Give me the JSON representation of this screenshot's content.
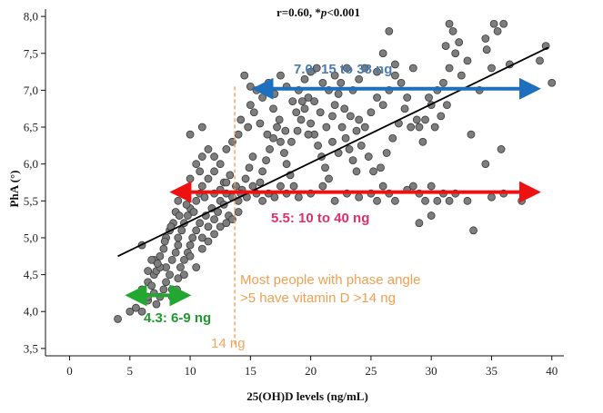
{
  "chart_data": {
    "type": "scatter",
    "title": "r=0.60, *p<0.001",
    "title_plain": "r=0.60, *",
    "title_italic": "p",
    "title_tail": "<0.001",
    "xlabel": "25(OH)D levels (ng/mL)",
    "ylabel": "PhA (°)",
    "xlim": [
      -2,
      41
    ],
    "ylim": [
      3.4,
      8.1
    ],
    "x_ticks": [
      0,
      5,
      10,
      15,
      20,
      25,
      30,
      35,
      40
    ],
    "x_tick_labels": [
      "0",
      "5",
      "10",
      "15",
      "20",
      "25",
      "30",
      "35",
      "40"
    ],
    "y_ticks": [
      3.5,
      4.0,
      4.5,
      5.0,
      5.5,
      6.0,
      6.5,
      7.0,
      7.5,
      8.0
    ],
    "y_tick_labels": [
      "3,5",
      "4,0",
      "4,5",
      "5,0",
      "5,5",
      "6,0",
      "6,5",
      "7,0",
      "7,5",
      "8,0"
    ],
    "regression_line": {
      "x": [
        4.0,
        39.7
      ],
      "y": [
        4.75,
        7.58
      ]
    },
    "threshold": {
      "x": 13.7,
      "label": "14 ng",
      "color": "#f4a460"
    },
    "arrows": [
      {
        "y": 7.02,
        "x_from": 16.0,
        "x_to": 38.2,
        "label": "7.0: 15 to 38 ng",
        "color": "#1f6fbf",
        "label_color": "#4a7ab0"
      },
      {
        "y": 5.62,
        "x_from": 9.2,
        "x_to": 38.2,
        "label": "5.5: 10 to 40 ng",
        "color": "#ee1111",
        "label_color": "#e0306a"
      },
      {
        "y": 4.22,
        "x_from": 5.5,
        "x_to": 9.2,
        "label": "4.3: 6-9 ng",
        "color": "#22a830",
        "label_color": "#1f9a2e"
      }
    ],
    "annotation": {
      "lines": [
        "Most people with phase angle",
        ">5  have vitamin D >14 ng"
      ],
      "color": "#f0a050"
    },
    "points_seed": 7,
    "points": [
      [
        4,
        3.9
      ],
      [
        5,
        4.0
      ],
      [
        5.5,
        4.05
      ],
      [
        6,
        4.0
      ],
      [
        6.5,
        4.15
      ],
      [
        6,
        4.3
      ],
      [
        6.5,
        4.4
      ],
      [
        6.8,
        4.35
      ],
      [
        7,
        4.5
      ],
      [
        7.2,
        4.55
      ],
      [
        7,
        4.7
      ],
      [
        7.5,
        4.75
      ],
      [
        7.8,
        4.85
      ],
      [
        8,
        4.6
      ],
      [
        8.3,
        4.5
      ],
      [
        8.5,
        4.7
      ],
      [
        8.8,
        4.8
      ],
      [
        9,
        4.9
      ],
      [
        7.5,
        4.6
      ],
      [
        6.8,
        4.7
      ],
      [
        6,
        4.9
      ],
      [
        6.5,
        4.2
      ],
      [
        7,
        4.25
      ],
      [
        7.5,
        4.2
      ],
      [
        8,
        4.4
      ],
      [
        8.5,
        4.3
      ],
      [
        9,
        4.45
      ],
      [
        9.2,
        4.6
      ],
      [
        9.5,
        4.7
      ],
      [
        9.8,
        4.8
      ],
      [
        10,
        4.9
      ],
      [
        10.2,
        5.0
      ],
      [
        10.5,
        5.1
      ],
      [
        10.8,
        5.2
      ],
      [
        11,
        5.0
      ],
      [
        11.3,
        5.3
      ],
      [
        11.5,
        5.15
      ],
      [
        11.8,
        5.4
      ],
      [
        12,
        5.25
      ],
      [
        12.3,
        5.35
      ],
      [
        12.5,
        5.5
      ],
      [
        12.8,
        5.45
      ],
      [
        13,
        5.6
      ],
      [
        13.2,
        5.3
      ],
      [
        13.5,
        5.55
      ],
      [
        9,
        5.0
      ],
      [
        9.3,
        5.1
      ],
      [
        9.5,
        5.2
      ],
      [
        9.8,
        5.3
      ],
      [
        10,
        5.4
      ],
      [
        10.3,
        5.35
      ],
      [
        10.5,
        5.5
      ],
      [
        10.8,
        5.6
      ],
      [
        11,
        5.7
      ],
      [
        11.2,
        5.55
      ],
      [
        8,
        5.0
      ],
      [
        8.3,
        5.1
      ],
      [
        8.6,
        5.2
      ],
      [
        8.8,
        5.35
      ],
      [
        9,
        5.5
      ],
      [
        9.5,
        5.65
      ],
      [
        10,
        5.8
      ],
      [
        10.5,
        6.0
      ],
      [
        11,
        6.1
      ],
      [
        11.5,
        6.2
      ],
      [
        12,
        6.1
      ],
      [
        12.5,
        6.0
      ],
      [
        13,
        6.2
      ],
      [
        13.5,
        6.3
      ],
      [
        14,
        6.4
      ],
      [
        10,
        6.4
      ],
      [
        11,
        6.5
      ],
      [
        12,
        5.9
      ],
      [
        12.8,
        5.75
      ],
      [
        13.3,
        5.85
      ],
      [
        14,
        5.5
      ],
      [
        14.3,
        5.65
      ],
      [
        14.6,
        5.8
      ],
      [
        14.9,
        5.95
      ],
      [
        15.2,
        6.1
      ],
      [
        15.5,
        5.6
      ],
      [
        15.8,
        5.75
      ],
      [
        16,
        5.9
      ],
      [
        16.3,
        6.05
      ],
      [
        16.6,
        6.2
      ],
      [
        16.9,
        6.35
      ],
      [
        17.2,
        6.5
      ],
      [
        17.5,
        6.3
      ],
      [
        17.8,
        6.15
      ],
      [
        18,
        6.0
      ],
      [
        18.3,
        5.85
      ],
      [
        18.6,
        5.7
      ],
      [
        18.9,
        6.45
      ],
      [
        19.2,
        6.6
      ],
      [
        19.5,
        6.75
      ],
      [
        19.8,
        6.9
      ],
      [
        20,
        6.55
      ],
      [
        20.3,
        6.4
      ],
      [
        20.6,
        6.25
      ],
      [
        20.9,
        6.1
      ],
      [
        21.2,
        5.95
      ],
      [
        21.5,
        5.8
      ],
      [
        21.8,
        6.65
      ],
      [
        22,
        6.8
      ],
      [
        22.3,
        6.95
      ],
      [
        22.6,
        6.5
      ],
      [
        22.9,
        6.35
      ],
      [
        23.2,
        6.2
      ],
      [
        23.5,
        6.05
      ],
      [
        23.8,
        5.9
      ],
      [
        15,
        6.8
      ],
      [
        15.5,
        7.0
      ],
      [
        16,
        6.9
      ],
      [
        16.5,
        7.1
      ],
      [
        17,
        6.95
      ],
      [
        17.5,
        7.2
      ],
      [
        18,
        7.05
      ],
      [
        18.5,
        6.85
      ],
      [
        19,
        7.0
      ],
      [
        19.5,
        7.15
      ],
      [
        20,
        7.25
      ],
      [
        20.5,
        7.3
      ],
      [
        21,
        7.1
      ],
      [
        21.5,
        7.0
      ],
      [
        22,
        7.2
      ],
      [
        22.5,
        7.1
      ],
      [
        23,
        7.3
      ],
      [
        23.5,
        7.0
      ],
      [
        24,
        7.15
      ],
      [
        24.5,
        7.3
      ],
      [
        24,
        6.6
      ],
      [
        24.5,
        6.5
      ],
      [
        25,
        6.7
      ],
      [
        25.5,
        6.9
      ],
      [
        26,
        6.8
      ],
      [
        26.5,
        7.0
      ],
      [
        27,
        7.2
      ],
      [
        27.5,
        7.1
      ],
      [
        28,
        6.9
      ],
      [
        28.5,
        7.3
      ],
      [
        25,
        5.6
      ],
      [
        25.5,
        5.5
      ],
      [
        26,
        5.7
      ],
      [
        26.5,
        5.6
      ],
      [
        27,
        5.5
      ],
      [
        28,
        5.65
      ],
      [
        28.5,
        5.7
      ],
      [
        29,
        5.6
      ],
      [
        29.5,
        5.5
      ],
      [
        30,
        5.7
      ],
      [
        30.5,
        5.5
      ],
      [
        31,
        5.6
      ],
      [
        29,
        5.2
      ],
      [
        30,
        5.3
      ],
      [
        31.5,
        5.5
      ],
      [
        32,
        5.6
      ],
      [
        33,
        5.5
      ],
      [
        33.5,
        5.1
      ],
      [
        35,
        5.55
      ],
      [
        36,
        5.6
      ],
      [
        29,
        6.5
      ],
      [
        29.5,
        6.6
      ],
      [
        30,
        6.8
      ],
      [
        30.5,
        7.0
      ],
      [
        31,
        7.1
      ],
      [
        31.5,
        7.3
      ],
      [
        32,
        7.5
      ],
      [
        32.5,
        7.2
      ],
      [
        33,
        7.4
      ],
      [
        34,
        7.0
      ],
      [
        35,
        7.3
      ],
      [
        35.5,
        7.8
      ],
      [
        36,
        7.9
      ],
      [
        35.2,
        7.9
      ],
      [
        31.5,
        7.9
      ],
      [
        31.8,
        7.8
      ],
      [
        31.2,
        7.6
      ],
      [
        32.3,
        7.65
      ],
      [
        34.6,
        7.55
      ],
      [
        39.5,
        7.6
      ],
      [
        40,
        7.1
      ],
      [
        39,
        7.4
      ],
      [
        37.5,
        5.5
      ],
      [
        38,
        7.0
      ],
      [
        36.5,
        7.35
      ],
      [
        34.5,
        7.7
      ],
      [
        26.5,
        7.8
      ],
      [
        26,
        7.5
      ],
      [
        27,
        7.35
      ],
      [
        25.5,
        7.25
      ],
      [
        14.5,
        7.2
      ],
      [
        15,
        7.05
      ],
      [
        14.2,
        6.6
      ],
      [
        14.8,
        6.5
      ],
      [
        15.3,
        6.7
      ],
      [
        15.8,
        6.55
      ],
      [
        16.4,
        6.4
      ],
      [
        16.9,
        6.75
      ],
      [
        17.4,
        6.6
      ],
      [
        17.9,
        6.45
      ],
      [
        18.4,
        6.3
      ],
      [
        18.8,
        6.7
      ],
      [
        19.3,
        6.85
      ],
      [
        19.8,
        6.4
      ],
      [
        20.3,
        6.85
      ],
      [
        20.8,
        6.7
      ],
      [
        21.3,
        6.5
      ],
      [
        21.8,
        6.3
      ],
      [
        22.3,
        6.15
      ],
      [
        22.8,
        6.75
      ],
      [
        23.3,
        6.65
      ],
      [
        23.8,
        6.45
      ],
      [
        24.2,
        6.25
      ],
      [
        24.8,
        6.1
      ],
      [
        25.2,
        5.9
      ],
      [
        25.8,
        5.95
      ],
      [
        26.3,
        6.15
      ],
      [
        26.8,
        6.35
      ],
      [
        27.3,
        6.55
      ],
      [
        27.8,
        6.75
      ],
      [
        28.3,
        6.5
      ],
      [
        28.8,
        6.6
      ],
      [
        29.3,
        6.3
      ],
      [
        29.8,
        6.9
      ],
      [
        30.3,
        6.5
      ],
      [
        30.8,
        6.65
      ],
      [
        31.3,
        6.8
      ],
      [
        33.3,
        6.4
      ],
      [
        34.5,
        6.0
      ],
      [
        35.8,
        6.2
      ],
      [
        16,
        5.5
      ],
      [
        16.5,
        5.6
      ],
      [
        17,
        5.55
      ],
      [
        17.5,
        5.7
      ],
      [
        18,
        5.6
      ],
      [
        19,
        5.55
      ],
      [
        20,
        5.6
      ],
      [
        21,
        5.7
      ],
      [
        22,
        5.5
      ],
      [
        23,
        5.6
      ],
      [
        24,
        5.55
      ],
      [
        12,
        5.6
      ],
      [
        12.5,
        5.65
      ],
      [
        13,
        5.75
      ],
      [
        13.8,
        5.7
      ],
      [
        14.2,
        5.6
      ],
      [
        14.7,
        5.55
      ],
      [
        15.2,
        5.7
      ],
      [
        11.5,
        5.8
      ],
      [
        10.8,
        5.9
      ],
      [
        8.5,
        4.2
      ],
      [
        8.9,
        4.3
      ],
      [
        7.2,
        4.1
      ],
      [
        7.8,
        4.3
      ],
      [
        9.5,
        4.5
      ],
      [
        10.5,
        4.6
      ],
      [
        10,
        4.75
      ],
      [
        11,
        4.85
      ],
      [
        11.5,
        4.95
      ],
      [
        12,
        5.05
      ],
      [
        12.5,
        5.15
      ],
      [
        13,
        5.2
      ],
      [
        13.5,
        5.25
      ],
      [
        14,
        5.35
      ],
      [
        6.5,
        4.55
      ],
      [
        7.3,
        4.65
      ],
      [
        7.9,
        4.95
      ],
      [
        8.4,
        5.15
      ],
      [
        9.1,
        5.3
      ],
      [
        9.7,
        5.45
      ]
    ]
  }
}
